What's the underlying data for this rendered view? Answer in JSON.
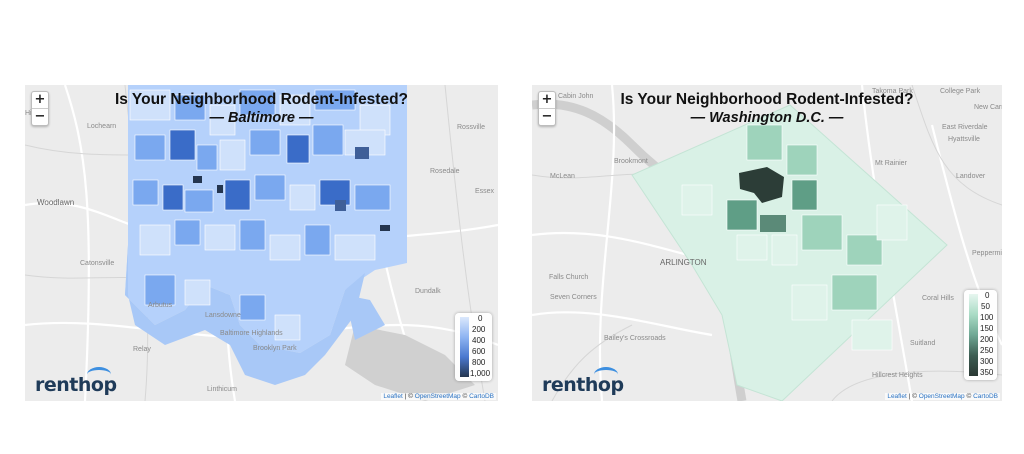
{
  "zoom": {
    "in": "+",
    "out": "−"
  },
  "brand": "renthop",
  "attribution": {
    "leaflet": "Leaflet",
    "sep": " | © ",
    "osm": "OpenStreetMap",
    "mid": " © ",
    "carto": "CartoDB"
  },
  "baltimore": {
    "title": "Is Your Neighborhood Rodent-Infested?",
    "subtitle": "— Baltimore —",
    "legend": [
      "0",
      "200",
      "400",
      "600",
      "800",
      "1,000"
    ],
    "places": [
      "Hill",
      "Lochearn",
      "Rossville",
      "Rosedale",
      "Essex",
      "Woodlawn",
      "Catonsville",
      "Arbutus",
      "Lansdowne",
      "Baltimore Highlands",
      "Brooklyn Park",
      "Dundalk",
      "Relay",
      "Linthicum"
    ],
    "colors": {
      "low": "#cfe1fb",
      "mid": "#7aa8ef",
      "high": "#3a6cc8",
      "max": "#1d3050"
    }
  },
  "dc": {
    "title": "Is Your Neighborhood Rodent-Infested?",
    "subtitle": "— Washington D.C. —",
    "legend": [
      "0",
      "50",
      "100",
      "150",
      "200",
      "250",
      "300",
      "350"
    ],
    "places": [
      "Cabin John",
      "Takoma Park",
      "College Park",
      "New Carrollton",
      "Hyattsville",
      "East Riverdale",
      "Mt Rainier",
      "Brookmont",
      "McLean",
      "Landover",
      "ARLINGTON",
      "Falls Church",
      "Seven Corners",
      "Bailey's Crossroads",
      "Peppermill Village",
      "Coral Hills",
      "Suitland",
      "Hillcrest Heights"
    ],
    "colors": {
      "low": "#dff3ea",
      "mid": "#9ed3bb",
      "high": "#5f9e86",
      "max": "#2c3e38"
    }
  }
}
